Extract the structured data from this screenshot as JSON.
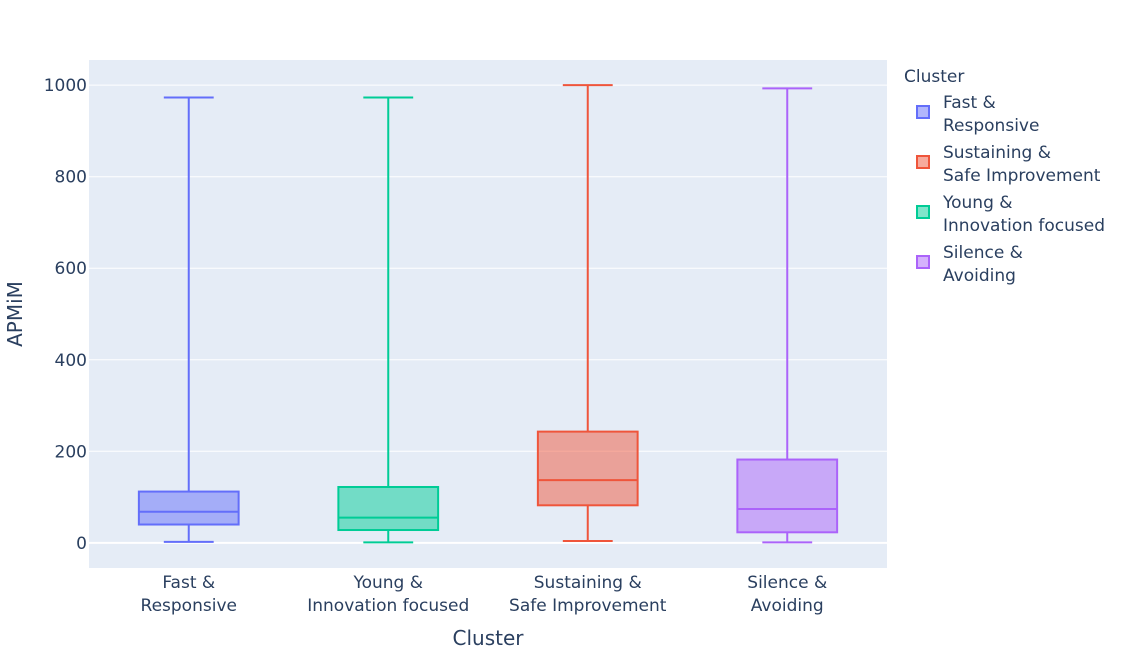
{
  "chart_data": {
    "type": "box",
    "title": "",
    "xlabel": "Cluster",
    "ylabel": "APMiM",
    "ylim": [
      -55,
      1055
    ],
    "yticks": [
      0,
      200,
      400,
      600,
      800,
      1000
    ],
    "ytick_labels": [
      "0",
      "200",
      "400",
      "600",
      "800",
      "1000"
    ],
    "grid": true,
    "legend": {
      "title": "Cluster",
      "placement": "right"
    },
    "series": [
      {
        "name": "Fast & Responsive",
        "label_lines": [
          "Fast &",
          "Responsive"
        ],
        "color": "#636efa",
        "min": 2,
        "q1": 40,
        "median": 68,
        "q3": 112,
        "max": 973
      },
      {
        "name": "Young & Innovation focused",
        "label_lines": [
          "Young &",
          "Innovation focused"
        ],
        "color": "#00cc96",
        "min": 1,
        "q1": 28,
        "median": 55,
        "q3": 122,
        "max": 973
      },
      {
        "name": "Sustaining & Safe Improvement",
        "label_lines": [
          "Sustaining &",
          "Safe Improvement"
        ],
        "color": "#ef553b",
        "min": 4,
        "q1": 82,
        "median": 137,
        "q3": 243,
        "max": 1000
      },
      {
        "name": "Silence & Avoiding",
        "label_lines": [
          "Silence &",
          "Avoiding"
        ],
        "color": "#ab63fa",
        "min": 1,
        "q1": 23,
        "median": 74,
        "q3": 182,
        "max": 993
      }
    ],
    "legend_order": [
      0,
      2,
      1,
      3
    ]
  }
}
